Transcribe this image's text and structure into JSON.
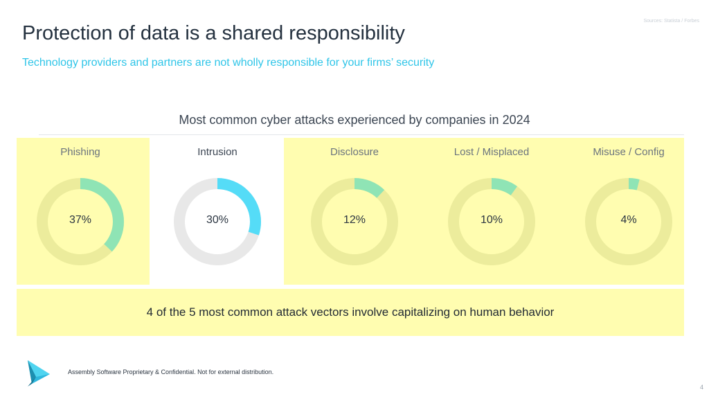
{
  "header": {
    "sources": "Sources: Statista / Forbes",
    "title": "Protection of data is a shared responsibility",
    "subtitle": "Technology providers and partners are not wholly responsible for your firms’ security"
  },
  "chart_data": {
    "type": "pie",
    "title": "Most common cyber attacks experienced by companies in 2024",
    "categories": [
      "Phishing",
      "Intrusion",
      "Disclosure",
      "Lost / Misplaced",
      "Misuse / Config"
    ],
    "values": [
      37,
      30,
      12,
      10,
      4
    ],
    "value_labels": [
      "37%",
      "30%",
      "12%",
      "10%",
      "4%"
    ],
    "unit": "%",
    "style": "donut",
    "colors": {
      "highlight_fill": "#8fe4b5",
      "highlight_track": "#ecec9c",
      "accent_fill": "#55dcf7",
      "accent_track": "#e8e8e8",
      "panel_background": "#fffdb0"
    },
    "highlighted": [
      "Phishing",
      "Disclosure",
      "Lost / Misplaced",
      "Misuse / Config"
    ]
  },
  "callout": {
    "text": "4 of the 5 most common attack vectors involve capitalizing on human behavior"
  },
  "footer": {
    "logo_icon": "play-arrow-logo-icon",
    "confidential": "Assembly Software Proprietary & Confidential. Not for external distribution.",
    "page_number": "4"
  }
}
